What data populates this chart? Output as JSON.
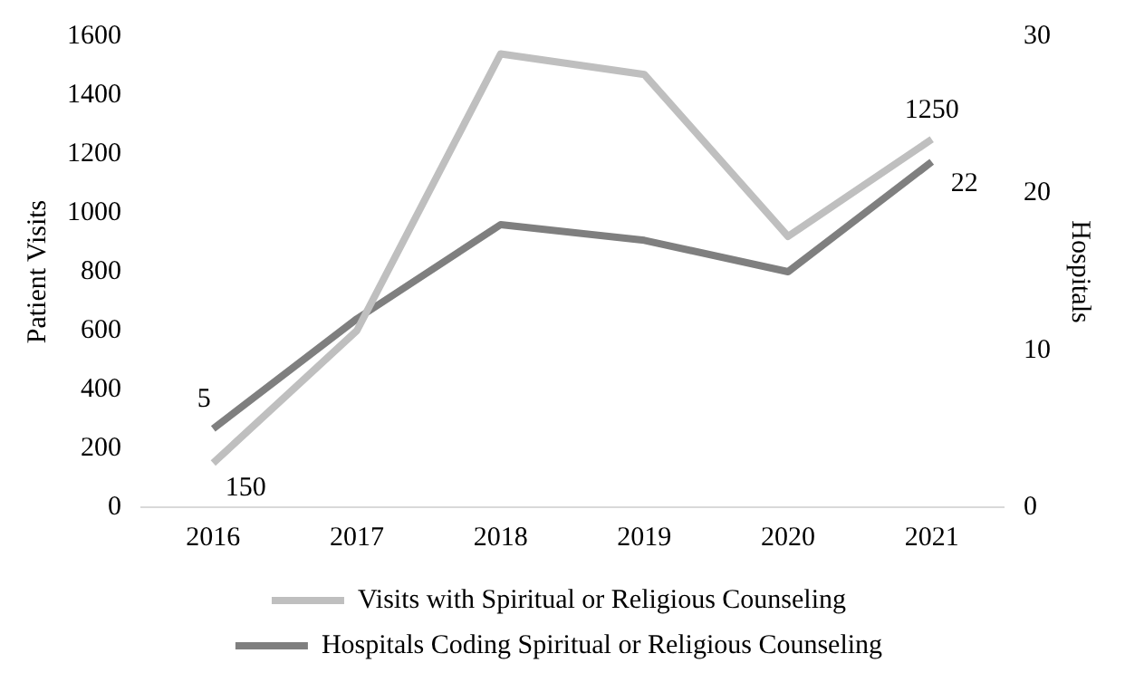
{
  "chart_data": {
    "type": "line",
    "ylabel": "Patient Visits",
    "y2label": "Hospitals",
    "categories": [
      "2016",
      "2017",
      "2018",
      "2019",
      "2020",
      "2021"
    ],
    "series": [
      {
        "name": "Visits with Spiritual or Religious Counseling",
        "color": "#bfbfbf",
        "values": [
          150,
          600,
          1540,
          1470,
          920,
          1250
        ],
        "value_labels": [
          "150",
          null,
          null,
          null,
          null,
          "1250"
        ]
      },
      {
        "name": "Hospitals Coding Spiritual or Religious Counseling",
        "color": "#7f7f7f",
        "axis": "y2",
        "values": [
          5,
          12,
          18,
          17,
          15,
          22
        ],
        "value_labels": [
          "5",
          null,
          null,
          null,
          null,
          "22"
        ]
      }
    ],
    "ylim": [
      0,
      1600
    ],
    "yticks": [
      0,
      200,
      400,
      600,
      800,
      1000,
      1200,
      1400,
      1600
    ],
    "y2lim": [
      0,
      30
    ],
    "y2ticks": [
      0,
      10,
      20,
      30
    ],
    "grid": false,
    "legend": "bottom",
    "marker": "none",
    "line_style": "solid"
  }
}
